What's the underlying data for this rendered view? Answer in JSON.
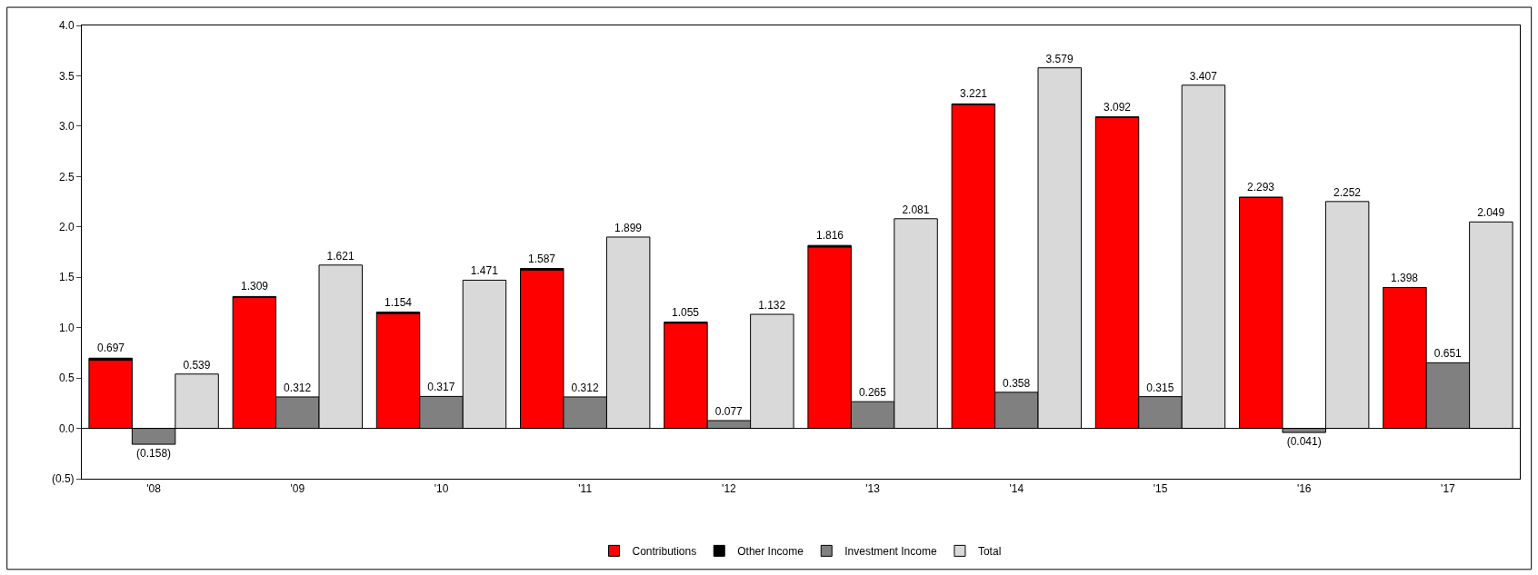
{
  "chart_data": {
    "type": "bar",
    "categories": [
      "'08",
      "'09",
      "'10",
      "'11",
      "'12",
      "'13",
      "'14",
      "'15",
      "'16",
      "'17"
    ],
    "series": [
      {
        "name": "Contributions",
        "color": "#ff0000",
        "values": [
          0.677,
          1.299,
          1.139,
          1.572,
          1.045,
          1.801,
          3.216,
          3.087,
          2.293,
          1.398
        ]
      },
      {
        "name": "Other Income",
        "color": "#000000",
        "values": [
          0.02,
          0.01,
          0.015,
          0.015,
          0.01,
          0.015,
          0.005,
          0.005,
          0.0,
          0.0
        ],
        "base": [
          0.677,
          1.299,
          1.139,
          1.572,
          1.045,
          1.801,
          3.216,
          3.087,
          2.293,
          1.398
        ]
      },
      {
        "name": "Investment Income",
        "color": "#808080",
        "values": [
          -0.158,
          0.312,
          0.317,
          0.312,
          0.077,
          0.265,
          0.358,
          0.315,
          -0.041,
          0.651
        ],
        "value_labels": [
          "(0.158)",
          "0.312",
          "0.317",
          "0.312",
          "0.077",
          "0.265",
          "0.358",
          "0.315",
          "(0.041)",
          "0.651"
        ]
      },
      {
        "name": "Total",
        "color": "#d9d9d9",
        "values": [
          0.539,
          1.621,
          1.471,
          1.899,
          1.132,
          2.081,
          3.579,
          3.407,
          2.252,
          2.049
        ],
        "value_labels": [
          "0.539",
          "1.621",
          "1.471",
          "1.899",
          "1.132",
          "2.081",
          "3.579",
          "3.407",
          "2.252",
          "2.049"
        ]
      }
    ],
    "annotations": [
      "0.697",
      "1.309",
      "1.154",
      "1.587",
      "1.055",
      "1.816",
      "3.221",
      "3.092",
      "2.293",
      "1.398"
    ],
    "ref_lines": [
      {
        "axis": "y",
        "value": 0,
        "color": "#000000"
      }
    ],
    "ylim": [
      -0.5,
      4.0
    ],
    "yticks": [
      {
        "value": -0.5,
        "label": "(0.5)"
      },
      {
        "value": 0,
        "label": "0.0"
      },
      {
        "value": 0.5,
        "label": "0.5"
      },
      {
        "value": 1.0,
        "label": "1.0"
      },
      {
        "value": 1.5,
        "label": "1.5"
      },
      {
        "value": 2.0,
        "label": "2.0"
      },
      {
        "value": 2.5,
        "label": "2.5"
      },
      {
        "value": 3.0,
        "label": "3.0"
      },
      {
        "value": 3.5,
        "label": "3.5"
      },
      {
        "value": 4.0,
        "label": "4.0"
      }
    ],
    "legend": "bottom"
  }
}
